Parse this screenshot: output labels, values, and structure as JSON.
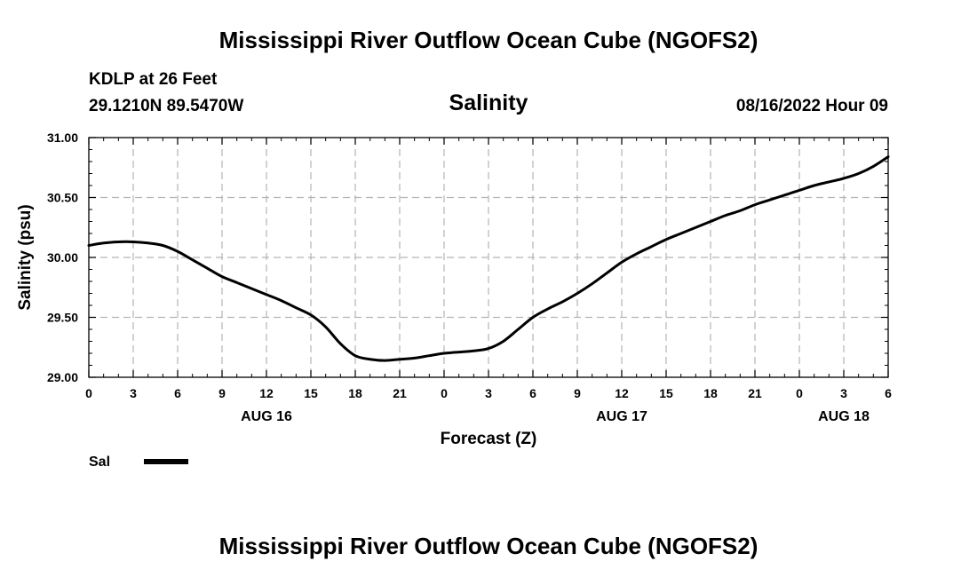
{
  "header": {
    "title": "Mississippi River Outflow Ocean Cube (NGOFS2)",
    "station": "KDLP at 26 Feet",
    "coords": "29.1210N  89.5470W",
    "variable": "Salinity",
    "timestamp": "08/16/2022 Hour 09"
  },
  "footer": {
    "title": "Mississippi River Outflow Ocean Cube (NGOFS2)"
  },
  "chart_data": {
    "type": "line",
    "xlabel": "Forecast (Z)",
    "ylabel": "Salinity (psu)",
    "ylim": [
      29.0,
      31.0
    ],
    "xlim": [
      0,
      54
    ],
    "y_ticks": [
      "29.00",
      "29.50",
      "30.00",
      "30.50",
      "31.00"
    ],
    "x_ticks": [
      "0",
      "3",
      "6",
      "9",
      "12",
      "15",
      "18",
      "21",
      "0",
      "3",
      "6",
      "9",
      "12",
      "15",
      "18",
      "21",
      "0",
      "3",
      "6"
    ],
    "date_labels": [
      {
        "label": "AUG 16",
        "at_hours": 12
      },
      {
        "label": "AUG 17",
        "at_hours": 36
      },
      {
        "label": "AUG 18",
        "at_hours": 51
      }
    ],
    "grid": true,
    "legend": "bottom-left",
    "series": [
      {
        "name": "Sal",
        "color": "#000000",
        "x": [
          0,
          1,
          2,
          3,
          4,
          5,
          6,
          7,
          8,
          9,
          10,
          11,
          12,
          13,
          14,
          15,
          16,
          17,
          18,
          19,
          20,
          21,
          22,
          23,
          24,
          25,
          26,
          27,
          28,
          29,
          30,
          31,
          32,
          33,
          34,
          35,
          36,
          37,
          38,
          39,
          40,
          41,
          42,
          43,
          44,
          45,
          46,
          47,
          48,
          49,
          50,
          51,
          52,
          53,
          54
        ],
        "y": [
          30.1,
          30.12,
          30.13,
          30.13,
          30.12,
          30.1,
          30.05,
          29.98,
          29.91,
          29.84,
          29.79,
          29.74,
          29.69,
          29.64,
          29.58,
          29.52,
          29.42,
          29.28,
          29.18,
          29.15,
          29.14,
          29.15,
          29.16,
          29.18,
          29.2,
          29.21,
          29.22,
          29.24,
          29.3,
          29.4,
          29.5,
          29.57,
          29.63,
          29.7,
          29.78,
          29.87,
          29.96,
          30.03,
          30.09,
          30.15,
          30.2,
          30.25,
          30.3,
          30.35,
          30.39,
          30.44,
          30.48,
          30.52,
          30.56,
          30.6,
          30.63,
          30.66,
          30.7,
          30.76,
          30.84
        ]
      }
    ]
  }
}
